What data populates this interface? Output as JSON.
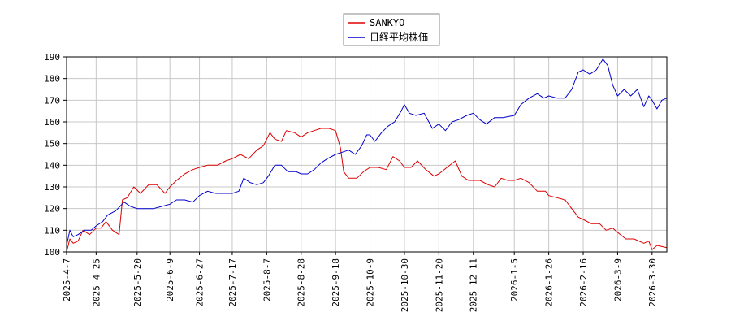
{
  "chart_data": {
    "type": "line",
    "title": "",
    "xlabel": "",
    "ylabel": "",
    "ylim": [
      100,
      190
    ],
    "yticks": [
      100,
      110,
      120,
      130,
      140,
      150,
      160,
      170,
      180,
      190
    ],
    "xticks": [
      "2025-4-7",
      "2025-4-25",
      "2025-5-20",
      "2025-6-9",
      "2025-6-27",
      "2025-7-17",
      "2025-8-7",
      "2025-8-28",
      "2025-9-18",
      "2025-10-9",
      "2025-10-30",
      "2025-11-20",
      "2025-12-11",
      "2026-1-5",
      "2026-1-26",
      "2026-2-16",
      "2026-3-9",
      "2026-3-30"
    ],
    "xlim": [
      "2025-4-7",
      "2026-4-8"
    ],
    "grid": true,
    "legend_position": "top-center",
    "series": [
      {
        "name": "SANKYO",
        "color": "#dd0000",
        "points": [
          [
            "2025-4-7",
            100
          ],
          [
            "2025-4-9",
            106
          ],
          [
            "2025-4-11",
            104
          ],
          [
            "2025-4-14",
            105
          ],
          [
            "2025-4-17",
            110
          ],
          [
            "2025-4-21",
            108
          ],
          [
            "2025-4-25",
            111
          ],
          [
            "2025-4-28",
            111
          ],
          [
            "2025-5-1",
            114
          ],
          [
            "2025-5-5",
            110
          ],
          [
            "2025-5-9",
            108
          ],
          [
            "2025-5-11",
            124
          ],
          [
            "2025-5-14",
            125
          ],
          [
            "2025-5-18",
            130
          ],
          [
            "2025-5-22",
            127
          ],
          [
            "2025-5-27",
            131
          ],
          [
            "2025-6-1",
            131
          ],
          [
            "2025-6-6",
            127
          ],
          [
            "2025-6-9",
            130
          ],
          [
            "2025-6-13",
            133
          ],
          [
            "2025-6-18",
            136
          ],
          [
            "2025-6-23",
            138
          ],
          [
            "2025-6-27",
            139
          ],
          [
            "2025-7-2",
            140
          ],
          [
            "2025-7-8",
            140
          ],
          [
            "2025-7-13",
            142
          ],
          [
            "2025-7-17",
            143
          ],
          [
            "2025-7-22",
            145
          ],
          [
            "2025-7-27",
            143
          ],
          [
            "2025-8-1",
            147
          ],
          [
            "2025-8-5",
            149
          ],
          [
            "2025-8-9",
            155
          ],
          [
            "2025-8-12",
            152
          ],
          [
            "2025-8-16",
            151
          ],
          [
            "2025-8-19",
            156
          ],
          [
            "2025-8-24",
            155
          ],
          [
            "2025-8-28",
            153
          ],
          [
            "2025-9-1",
            155
          ],
          [
            "2025-9-5",
            156
          ],
          [
            "2025-9-9",
            157
          ],
          [
            "2025-9-14",
            157
          ],
          [
            "2025-9-18",
            156
          ],
          [
            "2025-9-21",
            148
          ],
          [
            "2025-9-23",
            137
          ],
          [
            "2025-9-26",
            134
          ],
          [
            "2025-10-1",
            134
          ],
          [
            "2025-10-5",
            137
          ],
          [
            "2025-10-9",
            139
          ],
          [
            "2025-10-14",
            139
          ],
          [
            "2025-10-19",
            138
          ],
          [
            "2025-10-23",
            144
          ],
          [
            "2025-10-27",
            142
          ],
          [
            "2025-10-30",
            139
          ],
          [
            "2025-11-3",
            139
          ],
          [
            "2025-11-7",
            142
          ],
          [
            "2025-11-12",
            138
          ],
          [
            "2025-11-17",
            135
          ],
          [
            "2025-11-20",
            136
          ],
          [
            "2025-11-25",
            139
          ],
          [
            "2025-11-30",
            142
          ],
          [
            "2025-12-4",
            135
          ],
          [
            "2025-12-8",
            133
          ],
          [
            "2025-12-11",
            133
          ],
          [
            "2025-12-15",
            133
          ],
          [
            "2025-12-20",
            131
          ],
          [
            "2025-12-24",
            130
          ],
          [
            "2025-12-28",
            134
          ],
          [
            "2026-1-1",
            133
          ],
          [
            "2026-1-5",
            133
          ],
          [
            "2026-1-9",
            134
          ],
          [
            "2026-1-14",
            132
          ],
          [
            "2026-1-19",
            128
          ],
          [
            "2026-1-24",
            128
          ],
          [
            "2026-1-26",
            126
          ],
          [
            "2026-1-31",
            125
          ],
          [
            "2026-2-5",
            124
          ],
          [
            "2026-2-9",
            120
          ],
          [
            "2026-2-13",
            116
          ],
          [
            "2026-2-16",
            115
          ],
          [
            "2026-2-21",
            113
          ],
          [
            "2026-2-26",
            113
          ],
          [
            "2026-3-2",
            110
          ],
          [
            "2026-3-6",
            111
          ],
          [
            "2026-3-9",
            109
          ],
          [
            "2026-3-14",
            106
          ],
          [
            "2026-3-19",
            106
          ],
          [
            "2026-3-25",
            104
          ],
          [
            "2026-3-28",
            105
          ],
          [
            "2026-3-30",
            101
          ],
          [
            "2026-4-2",
            103
          ],
          [
            "2026-4-8",
            102
          ]
        ]
      },
      {
        "name": "日経平均株価",
        "color": "#0000cc",
        "points": [
          [
            "2025-4-7",
            103
          ],
          [
            "2025-4-9",
            110
          ],
          [
            "2025-4-11",
            107
          ],
          [
            "2025-4-14",
            108
          ],
          [
            "2025-4-18",
            110
          ],
          [
            "2025-4-22",
            110
          ],
          [
            "2025-4-25",
            112
          ],
          [
            "2025-4-29",
            114
          ],
          [
            "2025-5-2",
            117
          ],
          [
            "2025-5-7",
            119
          ],
          [
            "2025-5-12",
            123
          ],
          [
            "2025-5-16",
            121
          ],
          [
            "2025-5-20",
            120
          ],
          [
            "2025-5-25",
            120
          ],
          [
            "2025-5-30",
            120
          ],
          [
            "2025-6-4",
            121
          ],
          [
            "2025-6-9",
            122
          ],
          [
            "2025-6-13",
            124
          ],
          [
            "2025-6-18",
            124
          ],
          [
            "2025-6-23",
            123
          ],
          [
            "2025-6-27",
            126
          ],
          [
            "2025-7-2",
            128
          ],
          [
            "2025-7-7",
            127
          ],
          [
            "2025-7-12",
            127
          ],
          [
            "2025-7-17",
            127
          ],
          [
            "2025-7-21",
            128
          ],
          [
            "2025-7-24",
            134
          ],
          [
            "2025-7-28",
            132
          ],
          [
            "2025-8-1",
            131
          ],
          [
            "2025-8-5",
            132
          ],
          [
            "2025-8-8",
            135
          ],
          [
            "2025-8-12",
            140
          ],
          [
            "2025-8-16",
            140
          ],
          [
            "2025-8-20",
            137
          ],
          [
            "2025-8-25",
            137
          ],
          [
            "2025-8-28",
            136
          ],
          [
            "2025-9-1",
            136
          ],
          [
            "2025-9-5",
            138
          ],
          [
            "2025-9-9",
            141
          ],
          [
            "2025-9-13",
            143
          ],
          [
            "2025-9-18",
            145
          ],
          [
            "2025-9-22",
            146
          ],
          [
            "2025-9-26",
            147
          ],
          [
            "2025-9-30",
            145
          ],
          [
            "2025-10-4",
            149
          ],
          [
            "2025-10-7",
            154
          ],
          [
            "2025-10-9",
            154
          ],
          [
            "2025-10-12",
            151
          ],
          [
            "2025-10-16",
            155
          ],
          [
            "2025-10-20",
            158
          ],
          [
            "2025-10-24",
            160
          ],
          [
            "2025-10-28",
            165
          ],
          [
            "2025-10-30",
            168
          ],
          [
            "2025-11-2",
            164
          ],
          [
            "2025-11-6",
            163
          ],
          [
            "2025-11-11",
            164
          ],
          [
            "2025-11-16",
            157
          ],
          [
            "2025-11-20",
            159
          ],
          [
            "2025-11-24",
            156
          ],
          [
            "2025-11-28",
            160
          ],
          [
            "2025-12-2",
            161
          ],
          [
            "2025-12-7",
            163
          ],
          [
            "2025-12-11",
            164
          ],
          [
            "2025-12-15",
            161
          ],
          [
            "2025-12-19",
            159
          ],
          [
            "2025-12-24",
            162
          ],
          [
            "2025-12-29",
            162
          ],
          [
            "2026-1-5",
            163
          ],
          [
            "2026-1-9",
            168
          ],
          [
            "2026-1-14",
            171
          ],
          [
            "2026-1-19",
            173
          ],
          [
            "2026-1-23",
            171
          ],
          [
            "2026-1-26",
            172
          ],
          [
            "2026-1-31",
            171
          ],
          [
            "2026-2-5",
            171
          ],
          [
            "2026-2-9",
            175
          ],
          [
            "2026-2-13",
            183
          ],
          [
            "2026-2-16",
            184
          ],
          [
            "2026-2-20",
            182
          ],
          [
            "2026-2-24",
            184
          ],
          [
            "2026-2-28",
            189
          ],
          [
            "2026-3-3",
            186
          ],
          [
            "2026-3-6",
            177
          ],
          [
            "2026-3-9",
            172
          ],
          [
            "2026-3-13",
            175
          ],
          [
            "2026-3-17",
            172
          ],
          [
            "2026-3-21",
            175
          ],
          [
            "2026-3-25",
            167
          ],
          [
            "2026-3-28",
            172
          ],
          [
            "2026-3-30",
            170
          ],
          [
            "2026-4-2",
            166
          ],
          [
            "2026-4-5",
            170
          ],
          [
            "2026-4-8",
            171
          ]
        ]
      }
    ]
  }
}
